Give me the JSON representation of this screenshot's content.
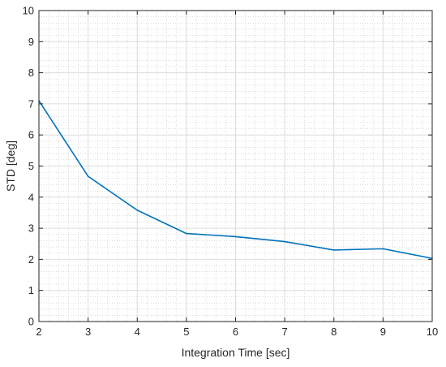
{
  "chart_data": {
    "type": "line",
    "title": "",
    "xlabel": "Integration Time [sec]",
    "ylabel": "STD [deg]",
    "xlim": [
      2,
      10
    ],
    "ylim": [
      0,
      10
    ],
    "xticks": [
      "2",
      "3",
      "4",
      "5",
      "6",
      "7",
      "8",
      "9",
      "10"
    ],
    "yticks": [
      "0",
      "1",
      "2",
      "3",
      "4",
      "5",
      "6",
      "7",
      "8",
      "9",
      "10"
    ],
    "grid": true,
    "minor_grid": true,
    "series": [
      {
        "name": "",
        "color": "#0072bd",
        "x": [
          2,
          3,
          4,
          5,
          6,
          7,
          8,
          9,
          10
        ],
        "y": [
          7.1,
          4.67,
          3.58,
          2.83,
          2.73,
          2.57,
          2.3,
          2.34,
          2.03
        ]
      }
    ]
  }
}
